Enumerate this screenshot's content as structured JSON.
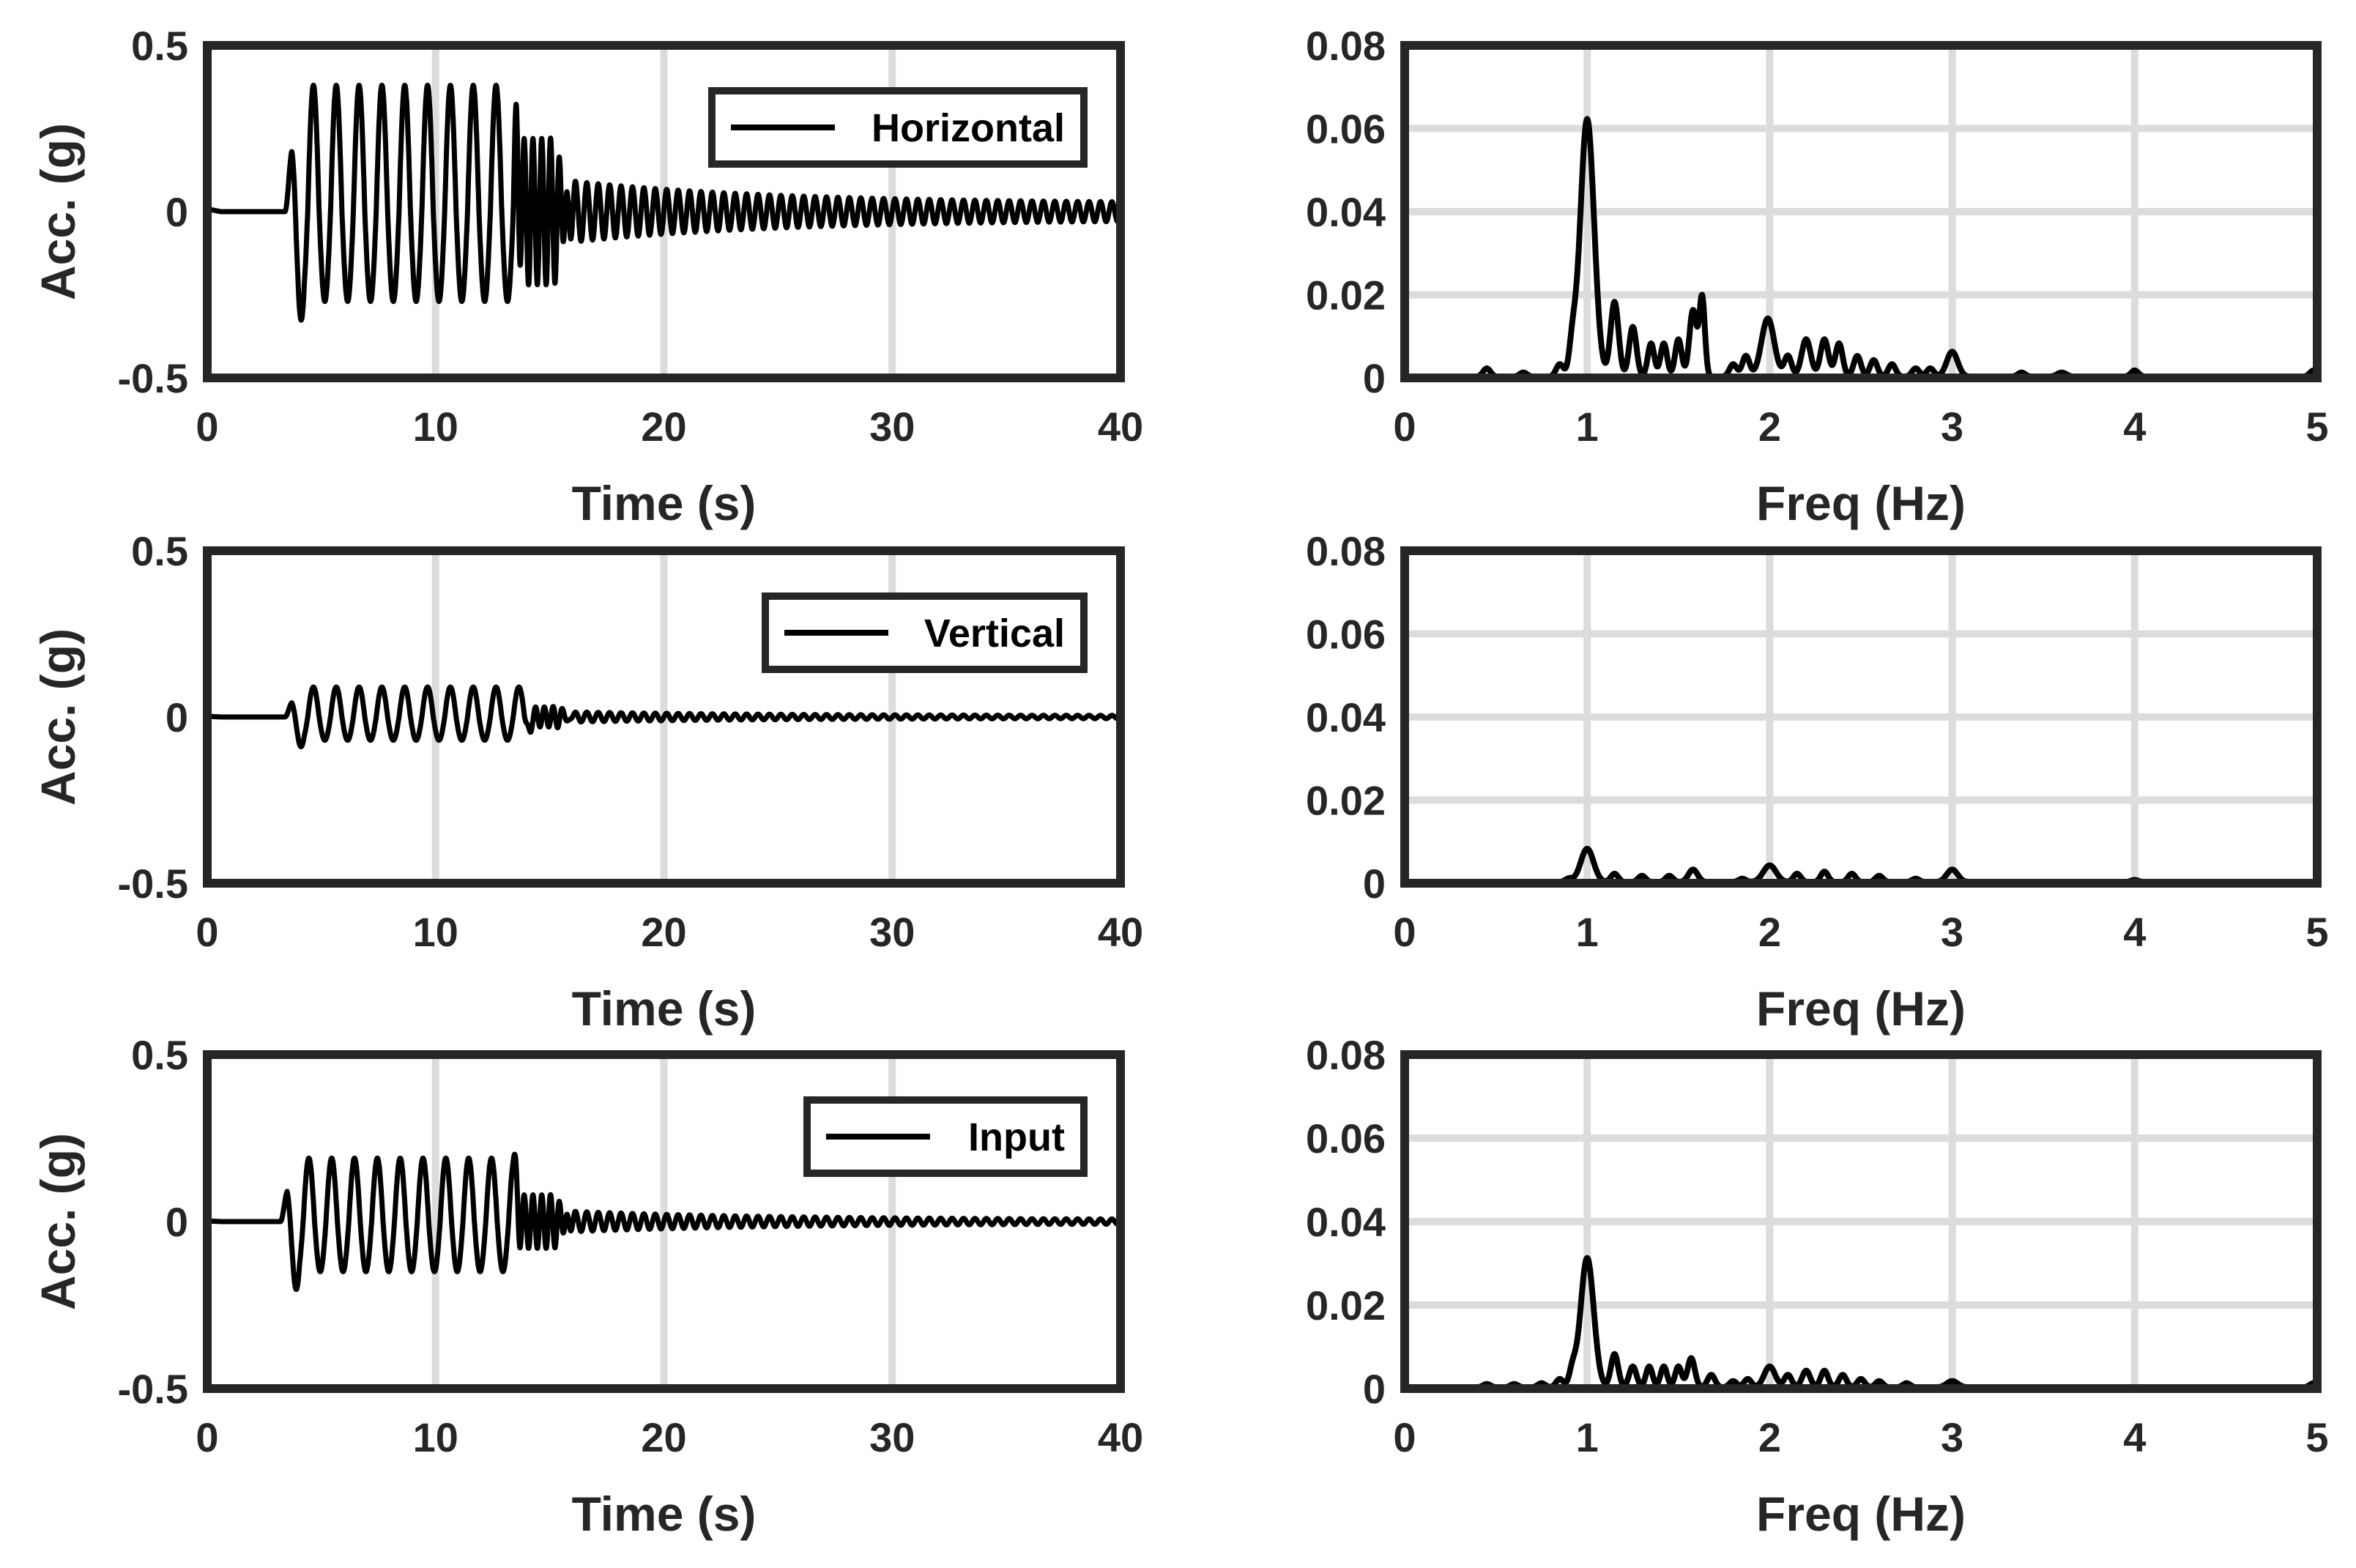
{
  "chart_data": [
    {
      "id": "h_time",
      "type": "line",
      "xlabel": "Time (s)",
      "ylabel": "Acc. (g)",
      "xlim": [
        0,
        40
      ],
      "ylim": [
        -0.5,
        0.5
      ],
      "xticks": [
        0,
        10,
        20,
        30,
        40
      ],
      "xtick_labels": [
        "0",
        "10",
        "20",
        "30",
        "40"
      ],
      "yticks": [
        -0.5,
        0,
        0.5
      ],
      "ytick_labels": [
        "-0.5",
        "0",
        "0.5"
      ],
      "grid": "x",
      "legend": {
        "label": "Horizontal",
        "position": "top-right"
      },
      "series": [
        {
          "name": "Horizontal",
          "values_description": "acceleration time history"
        }
      ],
      "signal": {
        "onset": 3.4,
        "forced_end": 13.4,
        "ringdown_end": 15.2,
        "transition_end": 16.2,
        "forced_freq": 1.0,
        "ringdown_freq": 2.6,
        "free_freq": 2.0,
        "forced_pos_peak": 0.38,
        "forced_neg_peak": 0.27,
        "first_neg_peak": 0.36,
        "ringdown_amp": 0.22,
        "free_amp_start": 0.09,
        "free_amp_end": 0.025,
        "pre_offset": 0.008
      }
    },
    {
      "id": "h_freq",
      "type": "line",
      "xlabel": "Freq (Hz)",
      "ylabel": "",
      "xlim": [
        0,
        5
      ],
      "ylim": [
        0,
        0.08
      ],
      "xticks": [
        0,
        1,
        2,
        3,
        4,
        5
      ],
      "xtick_labels": [
        "0",
        "1",
        "2",
        "3",
        "4",
        "5"
      ],
      "yticks": [
        0,
        0.02,
        0.04,
        0.06,
        0.08
      ],
      "ytick_labels": [
        "0",
        "0.02",
        "0.04",
        "0.06",
        "0.08"
      ],
      "grid": "both",
      "peaks": [
        {
          "f": 0.45,
          "a": 0.002,
          "w": 0.02
        },
        {
          "f": 0.65,
          "a": 0.001,
          "w": 0.02
        },
        {
          "f": 0.85,
          "a": 0.003,
          "w": 0.02
        },
        {
          "f": 0.92,
          "a": 0.007,
          "w": 0.018
        },
        {
          "f": 1.0,
          "a": 0.062,
          "w": 0.038
        },
        {
          "f": 1.15,
          "a": 0.018,
          "w": 0.022
        },
        {
          "f": 1.25,
          "a": 0.012,
          "w": 0.02
        },
        {
          "f": 1.35,
          "a": 0.008,
          "w": 0.018
        },
        {
          "f": 1.42,
          "a": 0.008,
          "w": 0.018
        },
        {
          "f": 1.5,
          "a": 0.009,
          "w": 0.018
        },
        {
          "f": 1.58,
          "a": 0.016,
          "w": 0.02
        },
        {
          "f": 1.63,
          "a": 0.019,
          "w": 0.015
        },
        {
          "f": 1.8,
          "a": 0.003,
          "w": 0.02
        },
        {
          "f": 1.87,
          "a": 0.005,
          "w": 0.02
        },
        {
          "f": 1.99,
          "a": 0.014,
          "w": 0.035
        },
        {
          "f": 2.1,
          "a": 0.005,
          "w": 0.02
        },
        {
          "f": 2.2,
          "a": 0.009,
          "w": 0.025
        },
        {
          "f": 2.3,
          "a": 0.009,
          "w": 0.022
        },
        {
          "f": 2.38,
          "a": 0.008,
          "w": 0.02
        },
        {
          "f": 2.48,
          "a": 0.005,
          "w": 0.02
        },
        {
          "f": 2.57,
          "a": 0.004,
          "w": 0.02
        },
        {
          "f": 2.67,
          "a": 0.003,
          "w": 0.02
        },
        {
          "f": 2.8,
          "a": 0.002,
          "w": 0.02
        },
        {
          "f": 2.88,
          "a": 0.002,
          "w": 0.02
        },
        {
          "f": 3.0,
          "a": 0.006,
          "w": 0.03
        },
        {
          "f": 3.38,
          "a": 0.001,
          "w": 0.02
        },
        {
          "f": 3.6,
          "a": 0.001,
          "w": 0.025
        },
        {
          "f": 4.0,
          "a": 0.0015,
          "w": 0.02
        },
        {
          "f": 4.98,
          "a": 0.0015,
          "w": 0.02
        }
      ]
    },
    {
      "id": "v_time",
      "type": "line",
      "xlabel": "Time (s)",
      "ylabel": "Acc. (g)",
      "xlim": [
        0,
        40
      ],
      "ylim": [
        -0.5,
        0.5
      ],
      "xticks": [
        0,
        10,
        20,
        30,
        40
      ],
      "xtick_labels": [
        "0",
        "10",
        "20",
        "30",
        "40"
      ],
      "yticks": [
        -0.5,
        0,
        0.5
      ],
      "ytick_labels": [
        "-0.5",
        "0",
        "0.5"
      ],
      "grid": "x",
      "legend": {
        "label": "Vertical",
        "position": "top-right"
      },
      "series": [
        {
          "name": "Vertical",
          "values_description": "acceleration time history"
        }
      ],
      "signal": {
        "onset": 3.4,
        "forced_end": 13.9,
        "ringdown_end": 15.2,
        "transition_end": 16.2,
        "forced_freq": 1.0,
        "ringdown_freq": 2.6,
        "free_freq": 2.0,
        "forced_pos_peak": 0.09,
        "forced_neg_peak": 0.07,
        "first_neg_peak": 0.1,
        "ringdown_amp": 0.03,
        "free_amp_start": 0.015,
        "free_amp_end": 0.004,
        "pre_offset": 0.002
      }
    },
    {
      "id": "v_freq",
      "type": "line",
      "xlabel": "Freq (Hz)",
      "ylabel": "",
      "xlim": [
        0,
        5
      ],
      "ylim": [
        0,
        0.08
      ],
      "xticks": [
        0,
        1,
        2,
        3,
        4,
        5
      ],
      "xtick_labels": [
        "0",
        "1",
        "2",
        "3",
        "4",
        "5"
      ],
      "yticks": [
        0,
        0.02,
        0.04,
        0.06,
        0.08
      ],
      "ytick_labels": [
        "0",
        "0.02",
        "0.04",
        "0.06",
        "0.08"
      ],
      "grid": "both",
      "peaks": [
        {
          "f": 0.9,
          "a": 0.0008,
          "w": 0.02
        },
        {
          "f": 1.0,
          "a": 0.008,
          "w": 0.035
        },
        {
          "f": 1.15,
          "a": 0.002,
          "w": 0.02
        },
        {
          "f": 1.3,
          "a": 0.0015,
          "w": 0.02
        },
        {
          "f": 1.45,
          "a": 0.0015,
          "w": 0.02
        },
        {
          "f": 1.58,
          "a": 0.003,
          "w": 0.025
        },
        {
          "f": 1.85,
          "a": 0.0008,
          "w": 0.02
        },
        {
          "f": 2.0,
          "a": 0.004,
          "w": 0.035
        },
        {
          "f": 2.15,
          "a": 0.002,
          "w": 0.02
        },
        {
          "f": 2.3,
          "a": 0.0025,
          "w": 0.02
        },
        {
          "f": 2.45,
          "a": 0.002,
          "w": 0.02
        },
        {
          "f": 2.6,
          "a": 0.0015,
          "w": 0.02
        },
        {
          "f": 2.8,
          "a": 0.0008,
          "w": 0.02
        },
        {
          "f": 3.0,
          "a": 0.003,
          "w": 0.03
        },
        {
          "f": 4.0,
          "a": 0.0005,
          "w": 0.02
        }
      ]
    },
    {
      "id": "i_time",
      "type": "line",
      "xlabel": "Time (s)",
      "ylabel": "Acc. (g)",
      "xlim": [
        0,
        40
      ],
      "ylim": [
        -0.5,
        0.5
      ],
      "xticks": [
        0,
        10,
        20,
        30,
        40
      ],
      "xtick_labels": [
        "0",
        "10",
        "20",
        "30",
        "40"
      ],
      "yticks": [
        -0.5,
        0,
        0.5
      ],
      "ytick_labels": [
        "-0.5",
        "0",
        "0.5"
      ],
      "grid": "x",
      "legend": {
        "label": "Input",
        "position": "top-right"
      },
      "series": [
        {
          "name": "Input",
          "values_description": "acceleration time history"
        }
      ],
      "signal": {
        "onset": 3.2,
        "forced_end": 13.4,
        "ringdown_end": 15.2,
        "transition_end": 16.2,
        "forced_freq": 1.0,
        "ringdown_freq": 2.6,
        "free_freq": 2.0,
        "forced_pos_peak": 0.19,
        "forced_neg_peak": 0.15,
        "first_neg_peak": 0.23,
        "ringdown_amp": 0.08,
        "free_amp_start": 0.03,
        "free_amp_end": 0.006,
        "pre_offset": 0.002
      }
    },
    {
      "id": "i_freq",
      "type": "line",
      "xlabel": "Freq (Hz)",
      "ylabel": "",
      "xlim": [
        0,
        5
      ],
      "ylim": [
        0,
        0.08
      ],
      "xticks": [
        0,
        1,
        2,
        3,
        4,
        5
      ],
      "xtick_labels": [
        "0",
        "1",
        "2",
        "3",
        "4",
        "5"
      ],
      "yticks": [
        0,
        0.02,
        0.04,
        0.06,
        0.08
      ],
      "ytick_labels": [
        "0",
        "0.02",
        "0.04",
        "0.06",
        "0.08"
      ],
      "grid": "both",
      "peaks": [
        {
          "f": 0.45,
          "a": 0.0008,
          "w": 0.02
        },
        {
          "f": 0.6,
          "a": 0.0008,
          "w": 0.02
        },
        {
          "f": 0.75,
          "a": 0.001,
          "w": 0.02
        },
        {
          "f": 0.85,
          "a": 0.002,
          "w": 0.02
        },
        {
          "f": 0.92,
          "a": 0.004,
          "w": 0.018
        },
        {
          "f": 1.0,
          "a": 0.031,
          "w": 0.036
        },
        {
          "f": 1.15,
          "a": 0.008,
          "w": 0.02
        },
        {
          "f": 1.25,
          "a": 0.005,
          "w": 0.02
        },
        {
          "f": 1.34,
          "a": 0.005,
          "w": 0.018
        },
        {
          "f": 1.42,
          "a": 0.005,
          "w": 0.018
        },
        {
          "f": 1.5,
          "a": 0.005,
          "w": 0.018
        },
        {
          "f": 1.57,
          "a": 0.007,
          "w": 0.02
        },
        {
          "f": 1.68,
          "a": 0.003,
          "w": 0.02
        },
        {
          "f": 1.8,
          "a": 0.0015,
          "w": 0.02
        },
        {
          "f": 1.88,
          "a": 0.002,
          "w": 0.02
        },
        {
          "f": 2.0,
          "a": 0.005,
          "w": 0.03
        },
        {
          "f": 2.1,
          "a": 0.003,
          "w": 0.02
        },
        {
          "f": 2.2,
          "a": 0.004,
          "w": 0.022
        },
        {
          "f": 2.3,
          "a": 0.004,
          "w": 0.02
        },
        {
          "f": 2.4,
          "a": 0.003,
          "w": 0.02
        },
        {
          "f": 2.5,
          "a": 0.002,
          "w": 0.02
        },
        {
          "f": 2.6,
          "a": 0.0015,
          "w": 0.02
        },
        {
          "f": 2.75,
          "a": 0.001,
          "w": 0.02
        },
        {
          "f": 3.0,
          "a": 0.0015,
          "w": 0.03
        },
        {
          "f": 4.98,
          "a": 0.001,
          "w": 0.02
        }
      ]
    }
  ]
}
